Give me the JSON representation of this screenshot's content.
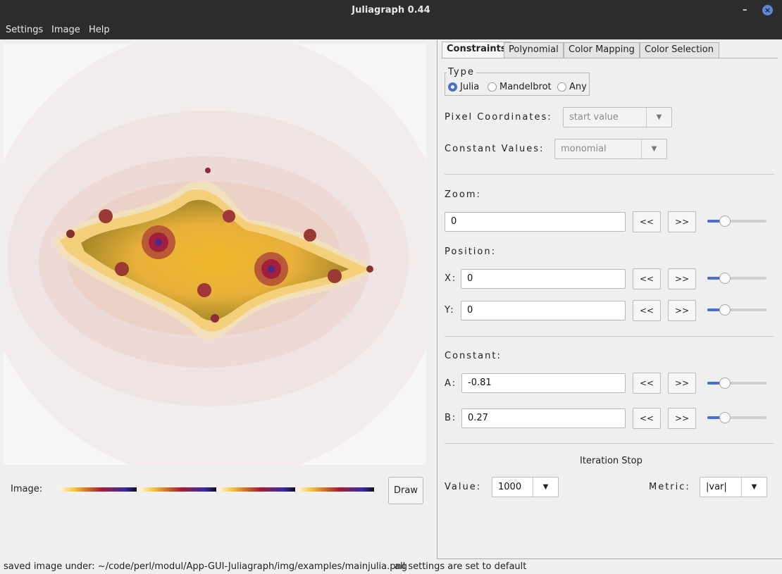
{
  "window": {
    "title": "Juliagraph 0.44"
  },
  "menu": {
    "items": [
      "Settings",
      "Image",
      "Help"
    ]
  },
  "canvas": {
    "image_label": "Image:",
    "draw_label": "Draw"
  },
  "tabs": [
    "Constraints",
    "Polynomial",
    "Color Mapping",
    "Color Selection"
  ],
  "type": {
    "label": "Type",
    "options": [
      "Julia",
      "Mandelbrot",
      "Any"
    ],
    "selected": "Julia"
  },
  "pixel_coordinates": {
    "label": "Pixel Coordinates:",
    "value": "start value"
  },
  "constant_values": {
    "label": "Constant Values:",
    "value": "monomial"
  },
  "zoom": {
    "label": "Zoom:",
    "value": "0"
  },
  "position": {
    "label": "Position:",
    "x_label": "X:",
    "x_value": "0",
    "y_label": "Y:",
    "y_value": "0"
  },
  "constant": {
    "label": "Constant:",
    "a_label": "A:",
    "a_value": "-0.81",
    "b_label": "B:",
    "b_value": "0.27"
  },
  "buttons": {
    "back": "<<",
    "forward": ">>"
  },
  "iteration_stop": {
    "title": "Iteration Stop",
    "value_label": "Value:",
    "value": "1000",
    "metric_label": "Metric:",
    "metric": "|var|"
  },
  "status": {
    "left": "saved image under: ~/code/perl/modul/App-GUI-Juliagraph/img/examples/mainjulia.png",
    "right": "all settings are set to default"
  },
  "colors": {
    "accent": "#4a6fd0",
    "titlebar": "#2c2c2c"
  }
}
